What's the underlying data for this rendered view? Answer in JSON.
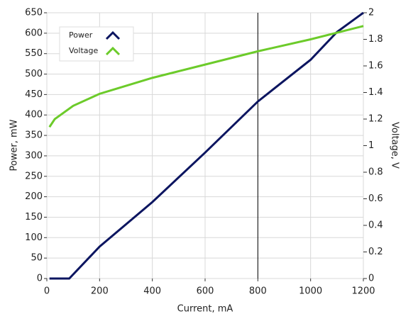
{
  "chart_data": {
    "type": "line",
    "xlabel": "Current, mA",
    "ylabel": "Power, mW",
    "y2label": "Voltage, V",
    "xlim": [
      0,
      1200
    ],
    "xticks": [
      0,
      200,
      400,
      600,
      800,
      1000,
      1200
    ],
    "ylim": [
      0,
      650
    ],
    "yticks": [
      0,
      50,
      100,
      150,
      200,
      250,
      300,
      350,
      400,
      450,
      500,
      550,
      600,
      650
    ],
    "y2lim": [
      0,
      2
    ],
    "y2ticks": [
      0,
      0.2,
      0.4,
      0.6,
      0.8,
      1,
      1.2,
      1.4,
      1.6,
      1.8,
      2
    ],
    "grid": true,
    "legend": "upper left",
    "cursor_x": 800,
    "series": [
      {
        "name": "Power",
        "color": "#0c1560",
        "x": [
          10,
          85,
          200,
          400,
          600,
          800,
          1000,
          1100,
          1200
        ],
        "values": [
          0,
          0,
          78,
          187,
          308,
          433,
          535,
          603,
          650
        ]
      },
      {
        "name": "Voltage",
        "color": "#6ccb2a",
        "axis": "y2",
        "x": [
          10,
          30,
          100,
          200,
          400,
          600,
          800,
          1000,
          1200
        ],
        "values": [
          1.14,
          1.2,
          1.3,
          1.39,
          1.51,
          1.61,
          1.71,
          1.8,
          1.9
        ]
      }
    ]
  }
}
